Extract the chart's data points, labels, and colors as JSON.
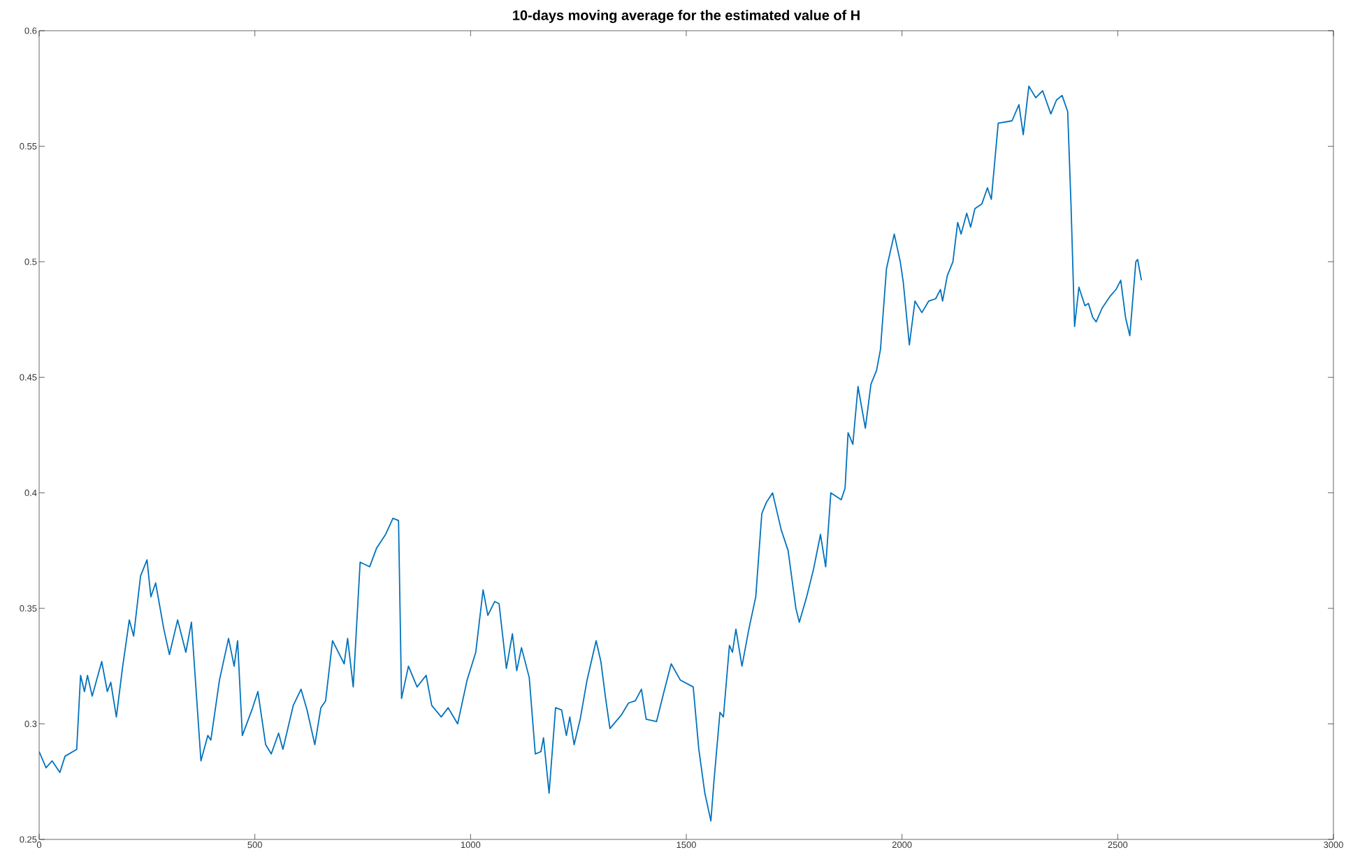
{
  "chart_data": {
    "type": "line",
    "title": "10-days moving average for the estimated value of H",
    "x": [
      0,
      16,
      30,
      48,
      60,
      87,
      96,
      105,
      112,
      123,
      145,
      158,
      166,
      179,
      193,
      209,
      219,
      235,
      250,
      259,
      270,
      289,
      302,
      321,
      340,
      353,
      375,
      391,
      398,
      418,
      439,
      452,
      460,
      471,
      493,
      507,
      525,
      538,
      555,
      565,
      589,
      607,
      621,
      639,
      653,
      664,
      680,
      707,
      715,
      728,
      744,
      766,
      782,
      803,
      820,
      833,
      840,
      856,
      876,
      897,
      910,
      932,
      948,
      970,
      992,
      1012,
      1029,
      1040,
      1056,
      1066,
      1083,
      1097,
      1107,
      1118,
      1136,
      1150,
      1163,
      1169,
      1182,
      1197,
      1211,
      1222,
      1230,
      1240,
      1254,
      1270,
      1291,
      1302,
      1313,
      1323,
      1350,
      1366,
      1382,
      1396,
      1407,
      1431,
      1447,
      1465,
      1486,
      1516,
      1529,
      1543,
      1557,
      1564,
      1578,
      1586,
      1600,
      1607,
      1615,
      1629,
      1645,
      1661,
      1675,
      1686,
      1700,
      1720,
      1736,
      1754,
      1762,
      1779,
      1795,
      1811,
      1823,
      1835,
      1859,
      1868,
      1875,
      1886,
      1898,
      1915,
      1928,
      1941,
      1950,
      1964,
      1982,
      1996,
      2003,
      2017,
      2030,
      2046,
      2062,
      2078,
      2089,
      2094,
      2105,
      2118,
      2129,
      2137,
      2150,
      2159,
      2169,
      2185,
      2198,
      2207,
      2223,
      2255,
      2271,
      2281,
      2294,
      2310,
      2326,
      2345,
      2358,
      2371,
      2384,
      2392,
      2400,
      2410,
      2424,
      2432,
      2442,
      2450,
      2464,
      2482,
      2496,
      2507,
      2518,
      2528,
      2542,
      2546,
      2555
    ],
    "series": [
      {
        "color": "#0072bd",
        "values": [
          0.288,
          0.281,
          0.284,
          0.279,
          0.286,
          0.289,
          0.321,
          0.314,
          0.321,
          0.312,
          0.327,
          0.314,
          0.318,
          0.303,
          0.324,
          0.345,
          0.338,
          0.364,
          0.371,
          0.355,
          0.361,
          0.341,
          0.33,
          0.345,
          0.331,
          0.344,
          0.284,
          0.295,
          0.293,
          0.319,
          0.337,
          0.325,
          0.336,
          0.295,
          0.306,
          0.314,
          0.291,
          0.287,
          0.296,
          0.289,
          0.308,
          0.315,
          0.306,
          0.291,
          0.307,
          0.31,
          0.336,
          0.326,
          0.337,
          0.316,
          0.37,
          0.368,
          0.376,
          0.382,
          0.389,
          0.388,
          0.311,
          0.325,
          0.316,
          0.321,
          0.308,
          0.303,
          0.307,
          0.3,
          0.319,
          0.331,
          0.358,
          0.347,
          0.353,
          0.352,
          0.324,
          0.339,
          0.323,
          0.333,
          0.32,
          0.287,
          0.288,
          0.294,
          0.27,
          0.307,
          0.306,
          0.295,
          0.303,
          0.291,
          0.302,
          0.319,
          0.336,
          0.327,
          0.311,
          0.298,
          0.304,
          0.309,
          0.31,
          0.315,
          0.302,
          0.301,
          0.313,
          0.326,
          0.319,
          0.316,
          0.289,
          0.27,
          0.258,
          0.275,
          0.305,
          0.303,
          0.334,
          0.331,
          0.341,
          0.325,
          0.341,
          0.355,
          0.391,
          0.396,
          0.4,
          0.384,
          0.375,
          0.35,
          0.344,
          0.355,
          0.367,
          0.382,
          0.368,
          0.4,
          0.397,
          0.402,
          0.426,
          0.421,
          0.446,
          0.428,
          0.447,
          0.453,
          0.462,
          0.497,
          0.512,
          0.5,
          0.491,
          0.464,
          0.483,
          0.478,
          0.483,
          0.484,
          0.488,
          0.483,
          0.494,
          0.5,
          0.517,
          0.512,
          0.521,
          0.515,
          0.523,
          0.525,
          0.532,
          0.527,
          0.56,
          0.561,
          0.568,
          0.555,
          0.576,
          0.571,
          0.574,
          0.564,
          0.57,
          0.572,
          0.565,
          0.523,
          0.472,
          0.489,
          0.481,
          0.482,
          0.476,
          0.474,
          0.48,
          0.485,
          0.488,
          0.492,
          0.476,
          0.468,
          0.5,
          0.501,
          0.492
        ]
      }
    ],
    "xlim": [
      0,
      3000
    ],
    "ylim": [
      0.25,
      0.6
    ],
    "xticks": [
      0,
      500,
      1000,
      1500,
      2000,
      2500,
      3000
    ],
    "yticks": [
      0.25,
      0.3,
      0.35,
      0.4,
      0.45,
      0.5,
      0.55,
      0.6
    ],
    "grid": false
  }
}
